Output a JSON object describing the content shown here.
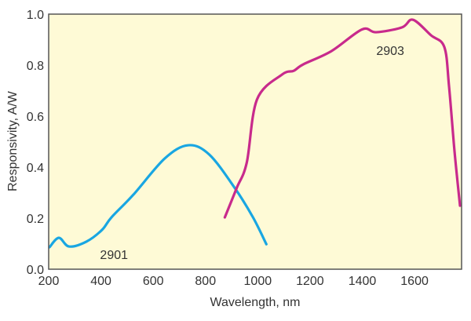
{
  "chart_data": {
    "type": "line",
    "title": "",
    "xlabel": "Wavelength, nm",
    "ylabel": "Responsivity, A/W",
    "xlim": [
      200,
      1780
    ],
    "ylim": [
      0,
      1.0
    ],
    "xticks": [
      200,
      400,
      600,
      800,
      1000,
      1200,
      1400,
      1600
    ],
    "xtick_labels": [
      "200",
      "400",
      "600",
      "800",
      "1000",
      "1200",
      "1400",
      "1600"
    ],
    "yticks": [
      0,
      0.2,
      0.4,
      0.6,
      0.8,
      1.0
    ],
    "ytick_labels": [
      "0.0",
      "0.2",
      "0.4",
      "0.6",
      "0.8",
      "1.0"
    ],
    "grid": false,
    "background": "#fefad6",
    "series": [
      {
        "name": "2901",
        "color": "#19a6e2",
        "label_at": [
          450,
          0.04
        ],
        "x": [
          203,
          239,
          278,
          344,
          404,
          440,
          524,
          644,
          734,
          815,
          913,
          982,
          1033
        ],
        "y": [
          0.086,
          0.123,
          0.089,
          0.108,
          0.154,
          0.203,
          0.292,
          0.434,
          0.486,
          0.449,
          0.317,
          0.203,
          0.098
        ]
      },
      {
        "name": "2903",
        "color": "#c82a8c",
        "label_at": [
          1507,
          0.84
        ],
        "x": [
          874,
          919,
          958,
          997,
          1093,
          1138,
          1174,
          1282,
          1399,
          1453,
          1552,
          1594,
          1663,
          1714,
          1732,
          1753,
          1774
        ],
        "y": [
          0.203,
          0.317,
          0.418,
          0.665,
          0.763,
          0.778,
          0.803,
          0.855,
          0.94,
          0.929,
          0.948,
          0.978,
          0.917,
          0.871,
          0.717,
          0.462,
          0.249
        ]
      }
    ]
  }
}
